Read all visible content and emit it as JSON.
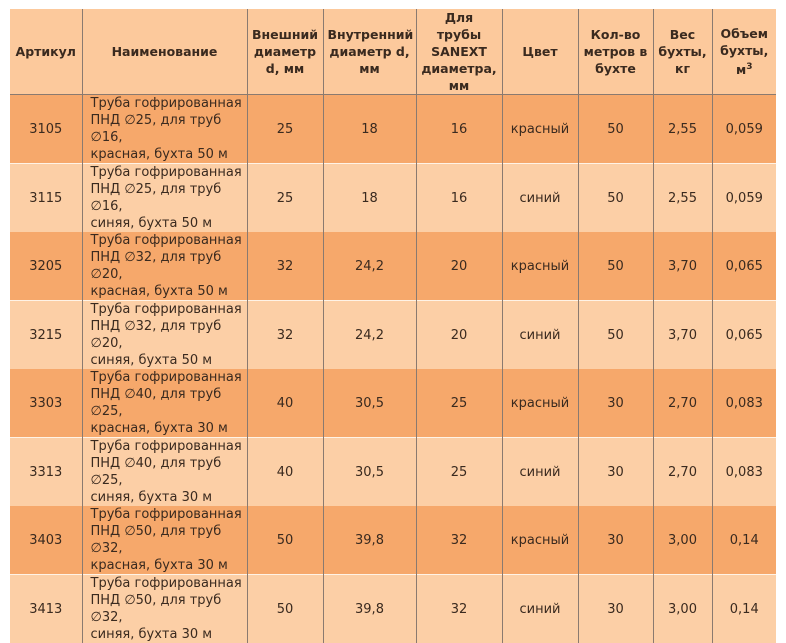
{
  "headers": [
    "Артикул",
    "Наименование",
    "Внешний диаметр d, мм",
    "Внутренний диаметр d, мм",
    "Для трубы SANEXT диаметра, мм",
    "Цвет",
    "Кол-во метров в бухте",
    "Вес бухты, кг",
    "Объем бухты, м",
    "3"
  ],
  "rows": [
    {
      "art": "3105",
      "name": [
        "Труба гофрированная",
        "ПНД ∅25, для труб ∅16,",
        "красная, бухта 50 м"
      ],
      "outer": "25",
      "inner": "18",
      "sanext": "16",
      "color": "красный",
      "meters": "50",
      "weight": "2,55",
      "volume": "0,059"
    },
    {
      "art": "3115",
      "name": [
        "Труба гофрированная",
        "ПНД ∅25, для труб ∅16,",
        "синяя, бухта 50 м"
      ],
      "outer": "25",
      "inner": "18",
      "sanext": "16",
      "color": "синий",
      "meters": "50",
      "weight": "2,55",
      "volume": "0,059"
    },
    {
      "art": "3205",
      "name": [
        "Труба гофрированная",
        "ПНД ∅32, для труб ∅20,",
        "красная, бухта 50 м"
      ],
      "outer": "32",
      "inner": "24,2",
      "sanext": "20",
      "color": "красный",
      "meters": "50",
      "weight": "3,70",
      "volume": "0,065"
    },
    {
      "art": "3215",
      "name": [
        "Труба гофрированная",
        "ПНД ∅32, для труб ∅20,",
        "синяя, бухта 50 м"
      ],
      "outer": "32",
      "inner": "24,2",
      "sanext": "20",
      "color": "синий",
      "meters": "50",
      "weight": "3,70",
      "volume": "0,065"
    },
    {
      "art": "3303",
      "name": [
        "Труба гофрированная",
        "ПНД ∅40, для труб ∅25,",
        "красная, бухта 30 м"
      ],
      "outer": "40",
      "inner": "30,5",
      "sanext": "25",
      "color": "красный",
      "meters": "30",
      "weight": "2,70",
      "volume": "0,083"
    },
    {
      "art": "3313",
      "name": [
        "Труба гофрированная",
        "ПНД ∅40, для труб ∅25,",
        "синяя, бухта 30 м"
      ],
      "outer": "40",
      "inner": "30,5",
      "sanext": "25",
      "color": "синий",
      "meters": "30",
      "weight": "2,70",
      "volume": "0,083"
    },
    {
      "art": "3403",
      "name": [
        "Труба гофрированная",
        "ПНД ∅50, для труб ∅32,",
        "красная, бухта 30 м"
      ],
      "outer": "50",
      "inner": "39,8",
      "sanext": "32",
      "color": "красный",
      "meters": "30",
      "weight": "3,00",
      "volume": "0,14"
    },
    {
      "art": "3413",
      "name": [
        "Труба гофрированная",
        "ПНД ∅50, для труб ∅32,",
        "синяя, бухта 30 м"
      ],
      "outer": "50",
      "inner": "39,8",
      "sanext": "32",
      "color": "синий",
      "meters": "30",
      "weight": "3,00",
      "volume": "0,14"
    }
  ]
}
